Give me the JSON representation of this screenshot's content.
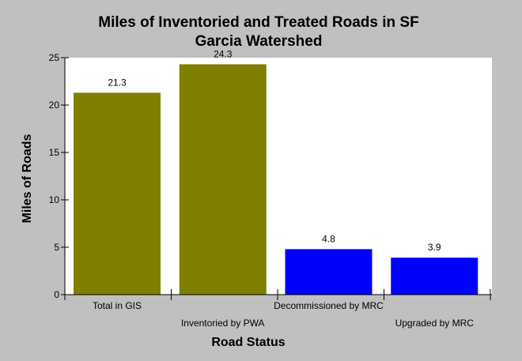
{
  "chart_data": {
    "type": "bar",
    "title_lines": [
      "Miles of Inventoried and Treated Roads in SF",
      "Garcia Watershed"
    ],
    "xlabel": "Road Status",
    "ylabel": "Miles of Roads",
    "ylim": [
      0,
      25
    ],
    "yticks": [
      0,
      5,
      10,
      15,
      20,
      25
    ],
    "grid": false,
    "legend": "none",
    "categories": [
      "Total in GIS",
      "Inventoried by PWA",
      "Decommissioned by MRC",
      "Upgraded by MRC"
    ],
    "values": [
      21.3,
      24.3,
      4.8,
      3.9
    ],
    "value_labels": [
      "21.3",
      "24.3",
      "4.8",
      "3.9"
    ],
    "bar_colors": [
      "#808000",
      "#808000",
      "#0000ff",
      "#0000ff"
    ],
    "colors": {
      "background": "#c0c0c0",
      "plot_area": "#ffffff"
    }
  }
}
